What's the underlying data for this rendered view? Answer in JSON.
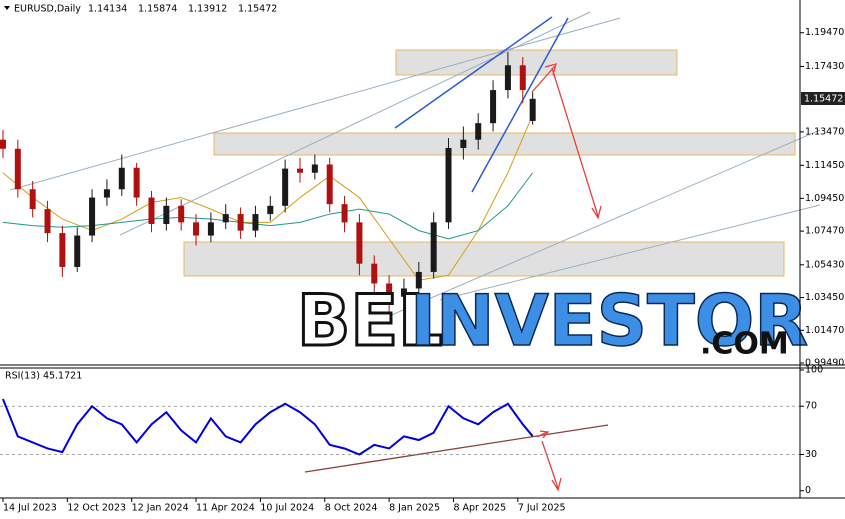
{
  "header": {
    "symbol": "EURUSD,Daily",
    "ohlc": [
      "1.14134",
      "1.15874",
      "1.13912",
      "1.15472"
    ],
    "current_price": "1.15472"
  },
  "watermark": {
    "parts": [
      "BEL",
      "INVESTOR",
      ".COM"
    ]
  },
  "chart_data": [
    {
      "type": "candlestick",
      "x": [
        0,
        3,
        6,
        9,
        12,
        15,
        18,
        21,
        24,
        27,
        30,
        33,
        36,
        39,
        42,
        45,
        48,
        51,
        54,
        57,
        60,
        63,
        66,
        69,
        72,
        75,
        78,
        81,
        84,
        87,
        90,
        93,
        96,
        99,
        102,
        105,
        107
      ],
      "open": [
        1.13,
        1.1245,
        1.1,
        1.088,
        1.0735,
        1.053,
        1.072,
        1.095,
        1.1,
        1.113,
        1.095,
        1.079,
        1.09,
        1.08,
        1.072,
        1.08,
        1.085,
        1.075,
        1.085,
        1.09,
        1.1125,
        1.11,
        1.115,
        1.091,
        1.08,
        1.055,
        1.043,
        1.035,
        1.04,
        1.05,
        1.08,
        1.125,
        1.13,
        1.14,
        1.16,
        1.175,
        1.14134
      ],
      "high": [
        1.136,
        1.13,
        1.105,
        1.093,
        1.078,
        1.077,
        1.1,
        1.106,
        1.121,
        1.116,
        1.099,
        1.095,
        1.094,
        1.085,
        1.086,
        1.091,
        1.089,
        1.09,
        1.096,
        1.118,
        1.119,
        1.121,
        1.119,
        1.096,
        1.085,
        1.06,
        1.048,
        1.046,
        1.056,
        1.086,
        1.131,
        1.138,
        1.146,
        1.166,
        1.183,
        1.18,
        1.15874
      ],
      "low": [
        1.119,
        1.095,
        1.083,
        1.068,
        1.047,
        1.05,
        1.068,
        1.09,
        1.096,
        1.09,
        1.074,
        1.075,
        1.075,
        1.066,
        1.068,
        1.076,
        1.07,
        1.071,
        1.081,
        1.086,
        1.104,
        1.106,
        1.086,
        1.074,
        1.048,
        1.036,
        1.02,
        1.03,
        1.034,
        1.046,
        1.076,
        1.118,
        1.124,
        1.135,
        1.155,
        1.152,
        1.13912
      ],
      "close": [
        1.1245,
        1.1,
        1.088,
        1.0735,
        1.053,
        1.072,
        1.095,
        1.1,
        1.113,
        1.095,
        1.079,
        1.09,
        1.08,
        1.072,
        1.08,
        1.085,
        1.075,
        1.085,
        1.09,
        1.1125,
        1.11,
        1.115,
        1.091,
        1.08,
        1.055,
        1.043,
        1.035,
        1.04,
        1.05,
        1.08,
        1.125,
        1.13,
        1.14,
        1.16,
        1.175,
        1.16,
        1.15472
      ],
      "up_color": "#1a1a1a",
      "down_color": "#b01010",
      "lines": [
        {
          "color": "#d4a017",
          "x": [
            0,
            6,
            12,
            18,
            24,
            30,
            36,
            42,
            48,
            54,
            60,
            66,
            72,
            78,
            84,
            90,
            96,
            102,
            107
          ],
          "values": [
            1.11,
            1.095,
            1.082,
            1.075,
            1.082,
            1.092,
            1.095,
            1.088,
            1.08,
            1.08,
            1.095,
            1.108,
            1.095,
            1.07,
            1.045,
            1.048,
            1.075,
            1.11,
            1.145
          ]
        },
        {
          "color": "#1a9a8a",
          "x": [
            0,
            6,
            12,
            18,
            24,
            30,
            36,
            42,
            48,
            54,
            60,
            66,
            72,
            78,
            84,
            90,
            96,
            102,
            107
          ],
          "values": [
            1.08,
            1.078,
            1.077,
            1.078,
            1.08,
            1.082,
            1.083,
            1.082,
            1.08,
            1.078,
            1.08,
            1.085,
            1.088,
            1.085,
            1.075,
            1.07,
            1.075,
            1.09,
            1.11
          ]
        }
      ],
      "xlim": [
        -0.6,
        161
      ],
      "ylim": [
        0.9937,
        1.2145
      ],
      "yticks": [
        {
          "value": 1.1947,
          "label": "1.19470"
        },
        {
          "value": 1.1743,
          "label": "1.17430"
        },
        {
          "value": 1.1347,
          "label": "1.13470"
        },
        {
          "value": 1.1145,
          "label": "1.11450"
        },
        {
          "value": 1.0945,
          "label": "1.09450"
        },
        {
          "value": 1.0747,
          "label": "1.07470"
        },
        {
          "value": 1.0543,
          "label": "1.05430"
        },
        {
          "value": 1.0345,
          "label": "1.03450"
        },
        {
          "value": 1.0147,
          "label": "1.01470"
        },
        {
          "value": 0.9949,
          "label": "0.99490"
        }
      ],
      "xticks": [
        {
          "value": 0,
          "label": "14 Jul 2023"
        },
        {
          "value": 13,
          "label": "12 Oct 2023"
        },
        {
          "value": 26,
          "label": "12 Jan 2024"
        },
        {
          "value": 39,
          "label": "11 Apr 2024"
        },
        {
          "value": 52,
          "label": "10 Jul 2024"
        },
        {
          "value": 65,
          "label": "8 Oct 2024"
        },
        {
          "value": 78,
          "label": "8 Jan 2025"
        },
        {
          "value": 91,
          "label": "8 Apr 2025"
        },
        {
          "value": 104,
          "label": "7 Jul 2025"
        }
      ]
    },
    {
      "type": "line",
      "title": "RSI(13) 45.1721",
      "color": "#0000dd",
      "x": [
        0,
        3,
        6,
        9,
        12,
        15,
        18,
        21,
        24,
        27,
        30,
        33,
        36,
        39,
        42,
        45,
        48,
        51,
        54,
        57,
        60,
        63,
        66,
        69,
        72,
        75,
        78,
        81,
        84,
        87,
        90,
        93,
        96,
        99,
        102,
        105,
        107
      ],
      "values": [
        76,
        45,
        40,
        35,
        32,
        55,
        70,
        60,
        55,
        40,
        55,
        65,
        50,
        40,
        60,
        45,
        40,
        55,
        65,
        72,
        65,
        55,
        38,
        35,
        30,
        38,
        35,
        45,
        42,
        48,
        70,
        60,
        55,
        65,
        72,
        55,
        45.1721
      ],
      "xlim": [
        -0.6,
        161
      ],
      "ylim": [
        -5,
        100
      ],
      "yticks": [
        0,
        30,
        70,
        100
      ],
      "grid_ticks": [
        30,
        70
      ]
    }
  ]
}
